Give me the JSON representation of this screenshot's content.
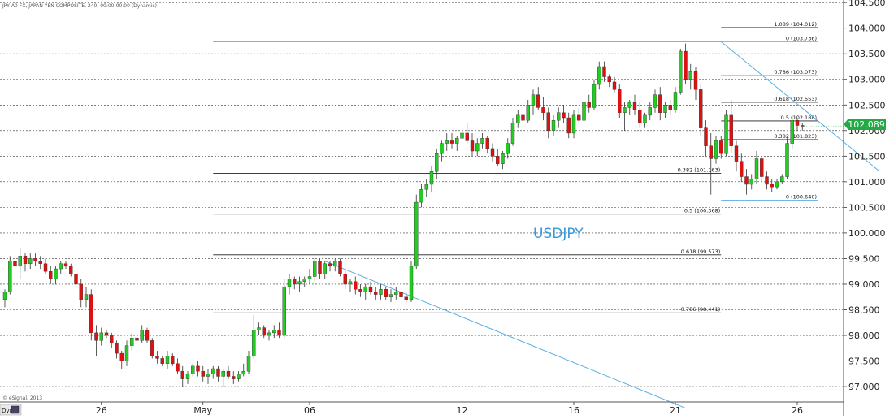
{
  "header": {
    "title": "JPY A0-FX, JAPAN YEN COMPOSITE, 240, 00:00-00:00 (Dynamic)"
  },
  "footer": {
    "copyright": "© eSignal, 2013",
    "dyn_label": "Dyn"
  },
  "symbol_label": "USDJPY",
  "colors": {
    "up": "#22cc22",
    "down": "#dd1111",
    "trend": "#5aaee0",
    "price_bg": "#22aa44"
  },
  "chart_data": {
    "type": "candlestick",
    "ylim": [
      96.7,
      104.55
    ],
    "y_ticks": [
      {
        "v": 97.0,
        "label": "97.000"
      },
      {
        "v": 97.5,
        "label": "97.500"
      },
      {
        "v": 98.0,
        "label": "98.000"
      },
      {
        "v": 98.5,
        "label": "98.500"
      },
      {
        "v": 99.0,
        "label": "99.000"
      },
      {
        "v": 99.5,
        "label": "99.500"
      },
      {
        "v": 100.0,
        "label": "100.000"
      },
      {
        "v": 100.5,
        "label": "100.500"
      },
      {
        "v": 101.0,
        "label": "101.000"
      },
      {
        "v": 101.5,
        "label": "101.500"
      },
      {
        "v": 102.0,
        "label": "102.000"
      },
      {
        "v": 102.5,
        "label": "102.500"
      },
      {
        "v": 103.0,
        "label": "103.000"
      },
      {
        "v": 103.5,
        "label": "103.500"
      },
      {
        "v": 104.0,
        "label": "104.000"
      },
      {
        "v": 104.5,
        "label": "104.500"
      }
    ],
    "x_ticks": [
      {
        "i": 19,
        "label": "26"
      },
      {
        "i": 39,
        "label": "May"
      },
      {
        "i": 60,
        "label": "06"
      },
      {
        "i": 90,
        "label": "12"
      },
      {
        "i": 112,
        "label": "16"
      },
      {
        "i": 132,
        "label": "21"
      },
      {
        "i": 156,
        "label": "26"
      }
    ],
    "last_price": {
      "v": 102.089,
      "label": "102.089"
    },
    "fibonacci": [
      {
        "v": 103.736,
        "label": "0 (103.736)",
        "i1": 141,
        "i2": 160,
        "color": "#5aaee0"
      },
      {
        "v": 104.012,
        "label": "1.089 (104.012)",
        "i1": 141,
        "i2": 160,
        "color": "#222"
      },
      {
        "v": 103.073,
        "label": "0.786 (103.073)",
        "i1": 141,
        "i2": 160,
        "color": "#222"
      },
      {
        "v": 102.553,
        "label": "0.618 (102.553)",
        "i1": 141,
        "i2": 160,
        "color": "#222"
      },
      {
        "v": 102.188,
        "label": "0.5 (102.188)",
        "i1": 141,
        "i2": 160,
        "color": "#222"
      },
      {
        "v": 101.823,
        "label": "0.382 (101.823)",
        "i1": 141,
        "i2": 160,
        "color": "#222"
      },
      {
        "v": 100.64,
        "label": "0 (100.640)",
        "i1": 141,
        "i2": 160,
        "color": "#5aaee0"
      },
      {
        "v": 101.163,
        "label": "0.382 (101.163)",
        "i1": 41,
        "i2": 141,
        "color": "#222"
      },
      {
        "v": 100.368,
        "label": "0.5 (100.368)",
        "i1": 41,
        "i2": 141,
        "color": "#222"
      },
      {
        "v": 99.573,
        "label": "0.618 (99.573)",
        "i1": 41,
        "i2": 141,
        "color": "#222"
      },
      {
        "v": 98.441,
        "label": "0.786 (98.441)",
        "i1": 41,
        "i2": 141,
        "color": "#222"
      }
    ],
    "blue_lines": [
      {
        "i1": 41,
        "v1": 103.736,
        "i2": 141,
        "v2": 103.736
      },
      {
        "i1": 141,
        "v1": 103.736,
        "i2": 172,
        "v2": 101.22
      },
      {
        "i1": 63,
        "v1": 99.45,
        "i2": 134,
        "v2": 96.58
      }
    ],
    "candles": [
      [
        98.7,
        98.9,
        98.55,
        98.85
      ],
      [
        98.85,
        99.55,
        98.8,
        99.45
      ],
      [
        99.45,
        99.65,
        99.2,
        99.35
      ],
      [
        99.35,
        99.7,
        99.1,
        99.55
      ],
      [
        99.55,
        99.6,
        99.25,
        99.4
      ],
      [
        99.4,
        99.6,
        99.3,
        99.5
      ],
      [
        99.5,
        99.6,
        99.35,
        99.45
      ],
      [
        99.45,
        99.55,
        99.3,
        99.4
      ],
      [
        99.4,
        99.5,
        99.2,
        99.25
      ],
      [
        99.25,
        99.35,
        99.0,
        99.1
      ],
      [
        99.1,
        99.35,
        99.0,
        99.3
      ],
      [
        99.3,
        99.45,
        99.2,
        99.4
      ],
      [
        99.4,
        99.45,
        99.3,
        99.35
      ],
      [
        99.35,
        99.4,
        99.15,
        99.2
      ],
      [
        99.2,
        99.3,
        98.95,
        99.0
      ],
      [
        99.0,
        99.1,
        98.55,
        98.7
      ],
      [
        98.7,
        98.95,
        98.55,
        98.8
      ],
      [
        98.8,
        98.9,
        97.9,
        98.05
      ],
      [
        98.05,
        98.2,
        97.6,
        97.9
      ],
      [
        97.9,
        98.15,
        97.8,
        98.05
      ],
      [
        98.05,
        98.1,
        97.95,
        98.0
      ],
      [
        98.0,
        98.05,
        97.75,
        97.85
      ],
      [
        97.85,
        97.9,
        97.55,
        97.65
      ],
      [
        97.65,
        97.7,
        97.35,
        97.5
      ],
      [
        97.5,
        97.9,
        97.4,
        97.8
      ],
      [
        97.8,
        98.05,
        97.7,
        97.95
      ],
      [
        97.95,
        98.0,
        97.8,
        97.9
      ],
      [
        97.9,
        98.2,
        97.85,
        98.1
      ],
      [
        98.1,
        98.15,
        97.85,
        97.9
      ],
      [
        97.9,
        97.95,
        97.55,
        97.6
      ],
      [
        97.6,
        97.7,
        97.45,
        97.55
      ],
      [
        97.55,
        97.6,
        97.4,
        97.45
      ],
      [
        97.45,
        97.7,
        97.35,
        97.6
      ],
      [
        97.6,
        97.65,
        97.4,
        97.45
      ],
      [
        97.45,
        97.55,
        97.25,
        97.3
      ],
      [
        97.3,
        97.4,
        97.0,
        97.15
      ],
      [
        97.15,
        97.3,
        97.05,
        97.25
      ],
      [
        97.25,
        97.45,
        97.2,
        97.4
      ],
      [
        97.4,
        97.5,
        97.2,
        97.3
      ],
      [
        97.3,
        97.4,
        97.1,
        97.2
      ],
      [
        97.2,
        97.35,
        97.05,
        97.25
      ],
      [
        97.25,
        97.4,
        97.15,
        97.35
      ],
      [
        97.35,
        97.4,
        97.1,
        97.2
      ],
      [
        97.2,
        97.35,
        97.0,
        97.3
      ],
      [
        97.3,
        97.4,
        97.15,
        97.2
      ],
      [
        97.2,
        97.3,
        97.05,
        97.15
      ],
      [
        97.15,
        97.3,
        97.1,
        97.25
      ],
      [
        97.25,
        97.45,
        97.2,
        97.3
      ],
      [
        97.3,
        97.7,
        97.25,
        97.6
      ],
      [
        97.6,
        98.4,
        97.55,
        98.1
      ],
      [
        98.1,
        98.25,
        98.0,
        98.15
      ],
      [
        98.15,
        98.2,
        97.95,
        98.0
      ],
      [
        98.0,
        98.1,
        97.9,
        98.05
      ],
      [
        98.05,
        98.2,
        97.95,
        98.1
      ],
      [
        98.1,
        98.25,
        97.95,
        98.0
      ],
      [
        98.0,
        99.1,
        97.95,
        98.95
      ],
      [
        98.95,
        99.2,
        98.8,
        99.1
      ],
      [
        99.1,
        99.15,
        98.9,
        99.0
      ],
      [
        99.0,
        99.15,
        98.85,
        99.05
      ],
      [
        99.05,
        99.15,
        98.95,
        99.1
      ],
      [
        99.1,
        99.3,
        99.0,
        99.15
      ],
      [
        99.15,
        99.5,
        99.05,
        99.45
      ],
      [
        99.45,
        99.5,
        99.1,
        99.2
      ],
      [
        99.2,
        99.45,
        99.1,
        99.4
      ],
      [
        99.4,
        99.45,
        99.25,
        99.35
      ],
      [
        99.35,
        99.5,
        99.25,
        99.45
      ],
      [
        99.45,
        99.5,
        99.15,
        99.2
      ],
      [
        99.2,
        99.3,
        98.9,
        99.0
      ],
      [
        99.0,
        99.1,
        98.85,
        99.05
      ],
      [
        99.05,
        99.15,
        98.8,
        98.9
      ],
      [
        98.9,
        99.0,
        98.75,
        98.85
      ],
      [
        98.85,
        99.0,
        98.7,
        98.95
      ],
      [
        98.95,
        99.05,
        98.8,
        98.85
      ],
      [
        98.85,
        98.95,
        98.7,
        98.8
      ],
      [
        98.8,
        99.0,
        98.7,
        98.9
      ],
      [
        98.9,
        98.95,
        98.7,
        98.75
      ],
      [
        98.75,
        98.9,
        98.65,
        98.8
      ],
      [
        98.8,
        98.95,
        98.7,
        98.85
      ],
      [
        98.85,
        98.9,
        98.7,
        98.75
      ],
      [
        98.75,
        98.85,
        98.65,
        98.7
      ],
      [
        98.7,
        99.45,
        98.65,
        99.35
      ],
      [
        99.35,
        100.75,
        99.3,
        100.6
      ],
      [
        100.6,
        100.95,
        100.5,
        100.85
      ],
      [
        100.85,
        101.05,
        100.7,
        100.95
      ],
      [
        100.95,
        101.3,
        100.8,
        101.2
      ],
      [
        101.2,
        101.65,
        101.05,
        101.55
      ],
      [
        101.55,
        101.8,
        101.4,
        101.75
      ],
      [
        101.75,
        101.95,
        101.6,
        101.8
      ],
      [
        101.8,
        101.95,
        101.65,
        101.75
      ],
      [
        101.75,
        101.9,
        101.6,
        101.85
      ],
      [
        101.85,
        102.1,
        101.7,
        101.95
      ],
      [
        101.95,
        102.15,
        101.75,
        101.8
      ],
      [
        101.8,
        101.95,
        101.5,
        101.6
      ],
      [
        101.6,
        101.85,
        101.5,
        101.75
      ],
      [
        101.75,
        101.95,
        101.65,
        101.85
      ],
      [
        101.85,
        101.9,
        101.55,
        101.65
      ],
      [
        101.65,
        101.75,
        101.4,
        101.5
      ],
      [
        101.5,
        101.65,
        101.3,
        101.35
      ],
      [
        101.35,
        101.6,
        101.25,
        101.55
      ],
      [
        101.55,
        101.85,
        101.45,
        101.75
      ],
      [
        101.75,
        102.25,
        101.7,
        102.15
      ],
      [
        102.15,
        102.4,
        102.05,
        102.3
      ],
      [
        102.3,
        102.45,
        102.1,
        102.2
      ],
      [
        102.2,
        102.6,
        102.15,
        102.5
      ],
      [
        102.5,
        102.8,
        102.3,
        102.7
      ],
      [
        102.7,
        102.85,
        102.4,
        102.45
      ],
      [
        102.45,
        102.65,
        102.2,
        102.35
      ],
      [
        102.35,
        102.45,
        101.85,
        102.0
      ],
      [
        102.0,
        102.3,
        101.9,
        102.2
      ],
      [
        102.2,
        102.45,
        102.05,
        102.35
      ],
      [
        102.35,
        102.5,
        102.15,
        102.25
      ],
      [
        102.25,
        102.35,
        101.85,
        101.95
      ],
      [
        101.95,
        102.4,
        101.85,
        102.3
      ],
      [
        102.3,
        102.45,
        102.15,
        102.2
      ],
      [
        102.2,
        102.65,
        102.1,
        102.55
      ],
      [
        102.55,
        102.7,
        102.35,
        102.45
      ],
      [
        102.45,
        103.0,
        102.4,
        102.9
      ],
      [
        102.9,
        103.35,
        102.8,
        103.25
      ],
      [
        103.25,
        103.35,
        102.95,
        103.05
      ],
      [
        103.05,
        103.1,
        102.85,
        102.95
      ],
      [
        102.95,
        103.05,
        102.75,
        102.8
      ],
      [
        102.8,
        102.9,
        102.25,
        102.35
      ],
      [
        102.35,
        102.55,
        102.0,
        102.45
      ],
      [
        102.45,
        102.6,
        102.3,
        102.55
      ],
      [
        102.55,
        102.7,
        102.3,
        102.4
      ],
      [
        102.4,
        102.55,
        102.05,
        102.15
      ],
      [
        102.15,
        102.35,
        102.05,
        102.3
      ],
      [
        102.3,
        102.55,
        102.2,
        102.45
      ],
      [
        102.45,
        102.8,
        102.35,
        102.7
      ],
      [
        102.7,
        102.85,
        102.2,
        102.35
      ],
      [
        102.35,
        102.55,
        102.25,
        102.5
      ],
      [
        102.5,
        102.6,
        102.3,
        102.4
      ],
      [
        102.4,
        102.85,
        102.35,
        102.75
      ],
      [
        102.75,
        103.6,
        102.7,
        103.55
      ],
      [
        103.55,
        103.7,
        102.9,
        103.0
      ],
      [
        103.0,
        103.3,
        102.8,
        103.15
      ],
      [
        103.15,
        103.25,
        102.6,
        102.8
      ],
      [
        102.8,
        102.9,
        101.9,
        102.05
      ],
      [
        102.05,
        102.2,
        101.5,
        101.7
      ],
      [
        101.7,
        101.95,
        100.75,
        101.45
      ],
      [
        101.45,
        101.9,
        101.35,
        101.8
      ],
      [
        101.8,
        101.9,
        101.45,
        101.55
      ],
      [
        101.55,
        102.4,
        101.5,
        102.3
      ],
      [
        102.3,
        102.6,
        101.55,
        101.7
      ],
      [
        101.7,
        101.8,
        101.2,
        101.4
      ],
      [
        101.4,
        101.55,
        101.0,
        101.1
      ],
      [
        101.1,
        101.25,
        100.75,
        100.95
      ],
      [
        100.95,
        101.15,
        100.85,
        101.05
      ],
      [
        101.05,
        101.6,
        100.95,
        101.45
      ],
      [
        101.45,
        101.5,
        101.0,
        101.1
      ],
      [
        101.1,
        101.2,
        100.85,
        100.95
      ],
      [
        100.95,
        101.05,
        100.8,
        100.9
      ],
      [
        100.9,
        101.05,
        100.85,
        101.0
      ],
      [
        101.0,
        101.15,
        100.95,
        101.1
      ],
      [
        101.1,
        101.85,
        101.05,
        101.75
      ],
      [
        101.75,
        102.3,
        101.65,
        102.2
      ],
      [
        102.2,
        102.25,
        102.0,
        102.1
      ],
      [
        102.1,
        102.15,
        102.0,
        102.09
      ]
    ]
  }
}
